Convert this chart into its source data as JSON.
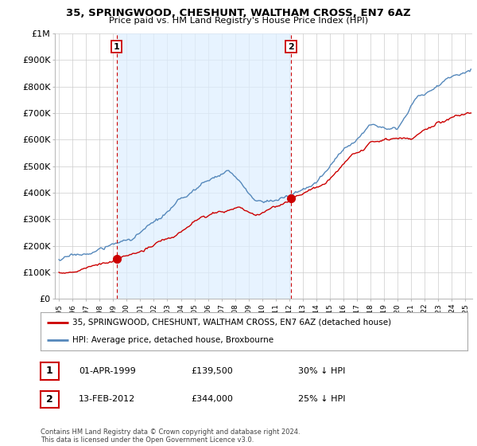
{
  "title": "35, SPRINGWOOD, CHESHUNT, WALTHAM CROSS, EN7 6AZ",
  "subtitle": "Price paid vs. HM Land Registry's House Price Index (HPI)",
  "legend_line1": "35, SPRINGWOOD, CHESHUNT, WALTHAM CROSS, EN7 6AZ (detached house)",
  "legend_line2": "HPI: Average price, detached house, Broxbourne",
  "annotation1_label": "1",
  "annotation1_date": "01-APR-1999",
  "annotation1_price": "£139,500",
  "annotation1_hpi": "30% ↓ HPI",
  "annotation1_year": 1999.25,
  "annotation1_value": 139500,
  "annotation2_label": "2",
  "annotation2_date": "13-FEB-2012",
  "annotation2_price": "£344,000",
  "annotation2_hpi": "25% ↓ HPI",
  "annotation2_year": 2012.12,
  "annotation2_value": 344000,
  "footer": "Contains HM Land Registry data © Crown copyright and database right 2024.\nThis data is licensed under the Open Government Licence v3.0.",
  "ylim": [
    0,
    1000000
  ],
  "xlim_start": 1994.7,
  "xlim_end": 2025.5,
  "red_color": "#cc0000",
  "blue_color": "#5588bb",
  "shade_color": "#ddeeff",
  "background_color": "#ffffff",
  "grid_color": "#cccccc",
  "yticks": [
    0,
    100000,
    200000,
    300000,
    400000,
    500000,
    600000,
    700000,
    800000,
    900000,
    1000000
  ],
  "ytick_labels": [
    "£0",
    "£100K",
    "£200K",
    "£300K",
    "£400K",
    "£500K",
    "£600K",
    "£700K",
    "£800K",
    "£900K",
    "£1M"
  ]
}
